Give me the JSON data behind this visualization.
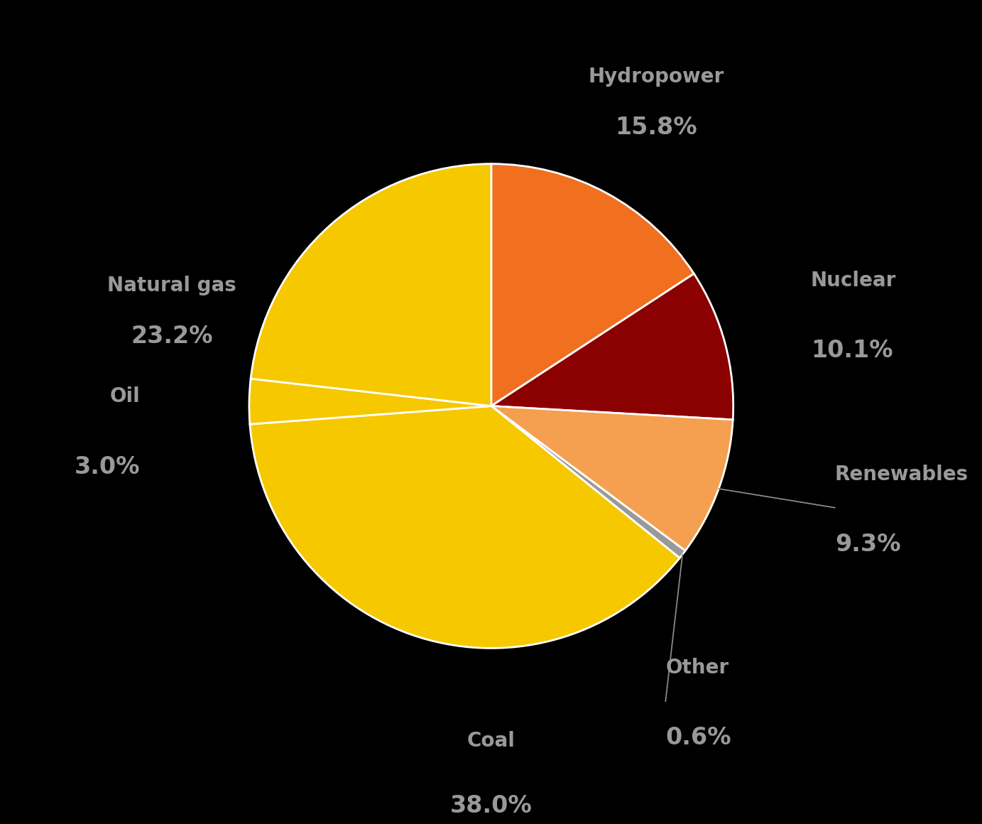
{
  "slices": [
    {
      "label": "Hydropower",
      "value": 15.8,
      "color": "#F07020"
    },
    {
      "label": "Nuclear",
      "value": 10.1,
      "color": "#8B0000"
    },
    {
      "label": "Renewables",
      "value": 9.3,
      "color": "#F5A050"
    },
    {
      "label": "Other",
      "value": 0.6,
      "color": "#999999"
    },
    {
      "label": "Coal",
      "value": 38.0,
      "color": "#F5C800"
    },
    {
      "label": "Oil",
      "value": 3.0,
      "color": "#F5C800"
    },
    {
      "label": "Natural gas",
      "value": 23.2,
      "color": "#F5C800"
    }
  ],
  "background_color": "#000000",
  "wedge_edge_color": "#ffffff",
  "wedge_linewidth": 2.0,
  "label_color": "#999999",
  "value_color": "#999999",
  "label_fontsize": 20,
  "value_fontsize": 24,
  "label_fontweight": "bold",
  "value_fontweight": "bold",
  "startangle": 90
}
